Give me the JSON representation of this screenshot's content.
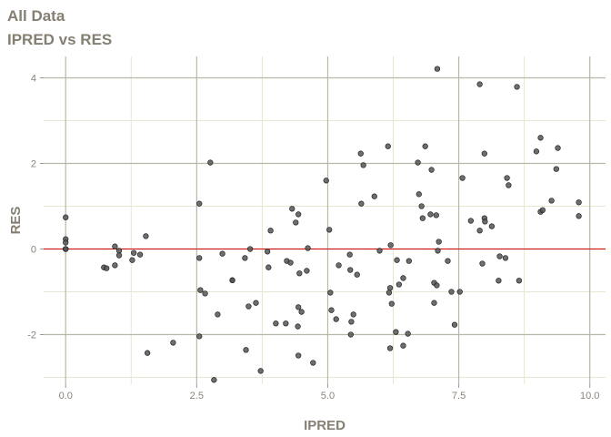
{
  "chart_data": {
    "type": "scatter",
    "title": "All Data",
    "subtitle": "IPRED vs RES",
    "xlabel": "IPRED",
    "ylabel": "RES",
    "xlim": [
      -0.42,
      10.3
    ],
    "ylim": [
      -3.16,
      4.5
    ],
    "x_ticks": [
      "0.0",
      "2.5",
      "5.0",
      "7.5",
      "10.0"
    ],
    "x_tick_values": [
      0,
      2.5,
      5,
      7.5,
      10
    ],
    "y_ticks": [
      "-2",
      "0",
      "2",
      "4"
    ],
    "y_tick_values": [
      -2,
      0,
      2,
      4
    ],
    "grid": true,
    "reference_line": {
      "y": 0,
      "color": "#d40000"
    },
    "colors": {
      "point_fill": "#555555",
      "point_stroke": "#222222",
      "major_grid": "#b8b8a8",
      "minor_grid": "#e6e6d2",
      "title": "#857f72"
    },
    "points": [
      [
        0,
        0.74
      ],
      [
        0,
        0.23
      ],
      [
        0,
        0.15
      ],
      [
        0,
        0
      ],
      [
        0,
        0
      ],
      [
        0,
        0
      ],
      [
        2.76,
        2.02
      ],
      [
        2.55,
        1.06
      ],
      [
        1.53,
        0.3
      ],
      [
        0.94,
        0.06
      ],
      [
        1.02,
        -0.04
      ],
      [
        1.02,
        -0.15
      ],
      [
        1.3,
        -0.09
      ],
      [
        1.42,
        -0.13
      ],
      [
        1.27,
        -0.26
      ],
      [
        0.73,
        -0.43
      ],
      [
        0.78,
        -0.45
      ],
      [
        0.94,
        -0.38
      ],
      [
        2.55,
        -0.21
      ],
      [
        2.99,
        -0.11
      ],
      [
        3.52,
        0
      ],
      [
        3.42,
        -0.21
      ],
      [
        3.85,
        -0.06
      ],
      [
        3.87,
        -0.43
      ],
      [
        4.22,
        -0.28
      ],
      [
        4.29,
        -0.32
      ],
      [
        4.46,
        -0.57
      ],
      [
        4.6,
        -0.51
      ],
      [
        4.62,
        0.02
      ],
      [
        3.91,
        0.43
      ],
      [
        4.32,
        0.94
      ],
      [
        4.44,
        0.81
      ],
      [
        4.39,
        0.62
      ],
      [
        4.97,
        1.6
      ],
      [
        3.18,
        -0.73
      ],
      [
        3.18,
        -0.73
      ],
      [
        2.57,
        -0.96
      ],
      [
        2.66,
        -1.04
      ],
      [
        2.9,
        -1.53
      ],
      [
        3.49,
        -1.34
      ],
      [
        3.63,
        -1.26
      ],
      [
        4.44,
        -1.36
      ],
      [
        4.5,
        -1.47
      ],
      [
        4.01,
        -1.74
      ],
      [
        4.2,
        -1.74
      ],
      [
        4.43,
        -1.81
      ],
      [
        2.55,
        -2.04
      ],
      [
        2.05,
        -2.19
      ],
      [
        1.56,
        -2.43
      ],
      [
        3.44,
        -2.36
      ],
      [
        4.44,
        -2.49
      ],
      [
        4.72,
        -2.66
      ],
      [
        3.72,
        -2.85
      ],
      [
        2.83,
        -3.06
      ],
      [
        7.09,
        4.21
      ],
      [
        7.9,
        3.85
      ],
      [
        8.61,
        3.79
      ],
      [
        9.06,
        2.6
      ],
      [
        8.98,
        2.28
      ],
      [
        9.39,
        2.36
      ],
      [
        9.36,
        1.87
      ],
      [
        7.99,
        2.23
      ],
      [
        6.15,
        2.4
      ],
      [
        6.86,
        2.4
      ],
      [
        5.63,
        2.23
      ],
      [
        5.68,
        1.96
      ],
      [
        6.72,
        2.02
      ],
      [
        6.98,
        1.85
      ],
      [
        7.57,
        1.66
      ],
      [
        8.42,
        1.66
      ],
      [
        8.45,
        1.49
      ],
      [
        5.89,
        1.23
      ],
      [
        5.64,
        1.06
      ],
      [
        6.74,
        1.28
      ],
      [
        6.79,
        1.0
      ],
      [
        6.96,
        0.81
      ],
      [
        7.07,
        0.79
      ],
      [
        6.81,
        0.72
      ],
      [
        9.27,
        1.13
      ],
      [
        9.79,
        1.09
      ],
      [
        9.06,
        0.87
      ],
      [
        9.1,
        0.91
      ],
      [
        9.79,
        0.77
      ],
      [
        7.73,
        0.66
      ],
      [
        7.99,
        0.72
      ],
      [
        8.0,
        0.64
      ],
      [
        8.13,
        0.53
      ],
      [
        7.9,
        0.43
      ],
      [
        5.03,
        0.45
      ],
      [
        7.12,
        0.17
      ],
      [
        6.2,
        0.09
      ],
      [
        7.1,
        -0.04
      ],
      [
        5.99,
        -0.04
      ],
      [
        5.42,
        -0.13
      ],
      [
        6.32,
        -0.26
      ],
      [
        6.55,
        -0.28
      ],
      [
        7.29,
        -0.28
      ],
      [
        8.28,
        -0.17
      ],
      [
        8.39,
        -0.21
      ],
      [
        7.95,
        -0.34
      ],
      [
        5.21,
        -0.38
      ],
      [
        5.43,
        -0.49
      ],
      [
        5.56,
        -0.6
      ],
      [
        6.44,
        -0.68
      ],
      [
        6.36,
        -0.83
      ],
      [
        7.03,
        -0.79
      ],
      [
        7.08,
        -0.85
      ],
      [
        8.26,
        -0.74
      ],
      [
        8.65,
        -0.74
      ],
      [
        6.19,
        -0.91
      ],
      [
        6.17,
        -1.02
      ],
      [
        7.36,
        -1.0
      ],
      [
        7.52,
        -1.0
      ],
      [
        5.05,
        -1.02
      ],
      [
        6.22,
        -1.28
      ],
      [
        7.03,
        -1.26
      ],
      [
        5.07,
        -1.43
      ],
      [
        5.49,
        -1.53
      ],
      [
        5.16,
        -1.64
      ],
      [
        5.45,
        -1.7
      ],
      [
        7.42,
        -1.77
      ],
      [
        5.44,
        -2.0
      ],
      [
        6.3,
        -1.94
      ],
      [
        6.53,
        -1.98
      ],
      [
        6.19,
        -2.32
      ],
      [
        6.44,
        -2.26
      ]
    ]
  }
}
